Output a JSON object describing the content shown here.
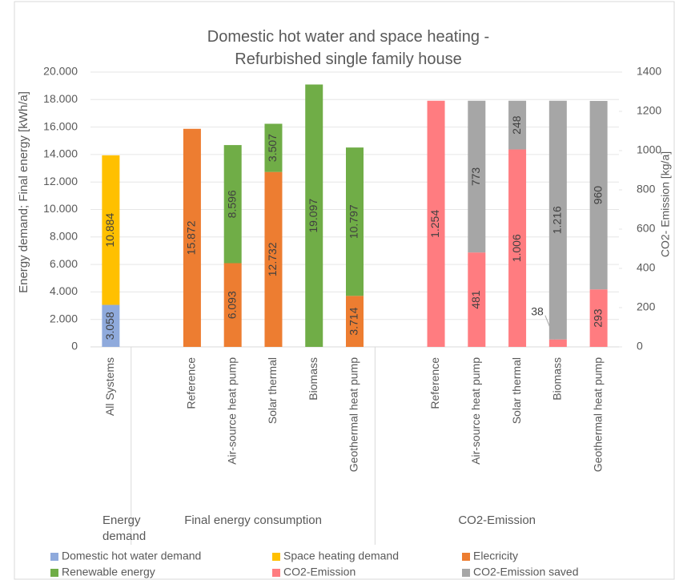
{
  "chart_data": {
    "type": "stacked_bar",
    "title": "Domestic hot water and space heating - Refurbished single family house",
    "y_label": "Energy demand; Final energy [kWh/a]",
    "y2_label": "CO2- Emission [kg/a]",
    "groups": [
      {
        "label": "Energy demand",
        "categories": [
          "All Systems"
        ]
      },
      {
        "label": "Final energy consumption",
        "categories": [
          "Reference",
          "Air-source heat pump",
          "Solar thermal",
          "Biomass",
          "Geothermal heat pump"
        ]
      },
      {
        "label": "CO2-Emission",
        "categories": [
          "Reference",
          "Air-source heat pump",
          "Solar thermal",
          "Biomass",
          "Geothermal heat pump"
        ]
      }
    ],
    "series": [
      {
        "name": "Domestic hot water demand",
        "color": "#8faadc",
        "axis": "y",
        "values": [
          3058,
          null,
          null,
          null,
          null,
          null,
          null,
          null,
          null,
          null,
          null
        ],
        "value_labels": [
          "3.058",
          null,
          null,
          null,
          null,
          null,
          null,
          null,
          null,
          null,
          null
        ]
      },
      {
        "name": "Space heating demand",
        "color": "#ffc000",
        "axis": "y",
        "values": [
          10884,
          null,
          null,
          null,
          null,
          null,
          null,
          null,
          null,
          null,
          null
        ],
        "value_labels": [
          "10.884",
          null,
          null,
          null,
          null,
          null,
          null,
          null,
          null,
          null,
          null
        ]
      },
      {
        "name": "Elecricity",
        "color": "#ed7d31",
        "axis": "y",
        "values": [
          null,
          15872,
          6093,
          12732,
          null,
          3714,
          null,
          null,
          null,
          null,
          null
        ],
        "value_labels": [
          null,
          "15.872",
          "6.093",
          "12.732",
          null,
          "3.714",
          null,
          null,
          null,
          null,
          null
        ]
      },
      {
        "name": "Renewable energy",
        "color": "#70ad47",
        "axis": "y",
        "values": [
          null,
          null,
          8596,
          3507,
          19097,
          10797,
          null,
          null,
          null,
          null,
          null
        ],
        "value_labels": [
          null,
          null,
          "8.596",
          "3.507",
          "19.097",
          "10.797",
          null,
          null,
          null,
          null,
          null
        ]
      },
      {
        "name": "CO2-Emission",
        "color": "#ff7c80",
        "axis": "y2",
        "values": [
          null,
          null,
          null,
          null,
          null,
          null,
          1254,
          481,
          1006,
          38,
          293
        ],
        "value_labels": [
          null,
          null,
          null,
          null,
          null,
          null,
          "1.254",
          "481",
          "1.006",
          "38",
          "293"
        ]
      },
      {
        "name": "CO2-Emission saved",
        "color": "#a6a6a6",
        "axis": "y2",
        "values": [
          null,
          null,
          null,
          null,
          null,
          null,
          null,
          773,
          248,
          1216,
          960
        ],
        "value_labels": [
          null,
          null,
          null,
          null,
          null,
          null,
          null,
          "773",
          "248",
          "1.216",
          "960"
        ]
      }
    ],
    "ylim": [
      0,
      20000
    ],
    "yticks": [
      0,
      {
        "value": 2000,
        "label": "2.000"
      },
      {
        "value": 4000,
        "label": "4.000"
      },
      {
        "value": 6000,
        "label": "6.000"
      },
      {
        "value": 8000,
        "label": "8.000"
      },
      {
        "value": 10000,
        "label": "10.000"
      },
      {
        "value": 12000,
        "label": "12.000"
      },
      {
        "value": 14000,
        "label": "14.000"
      },
      {
        "value": 16000,
        "label": "16.000"
      },
      {
        "value": 18000,
        "label": "18.000"
      },
      {
        "value": 20000,
        "label": "20.000"
      }
    ],
    "y2lim": [
      0,
      1400
    ],
    "y2ticks": [
      0,
      200,
      400,
      600,
      800,
      1000,
      1200,
      1400
    ],
    "grid": true,
    "legend": "bottom"
  }
}
